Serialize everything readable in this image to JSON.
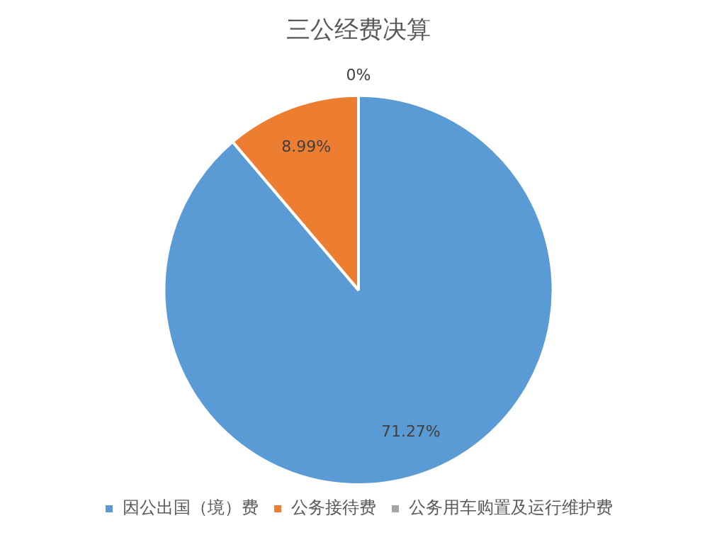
{
  "chart_data": {
    "type": "pie",
    "title": "三公经费决算",
    "categories": [
      "因公出国（境）费",
      "公务接待费",
      "公务用车购置及运行维护费"
    ],
    "values": [
      71.27,
      8.99,
      0
    ],
    "colors": [
      "#5b9bd5",
      "#ed7d31",
      "#a5a5a5"
    ],
    "value_labels": [
      "71.27%",
      "8.99%",
      "0%"
    ],
    "legend": "bottom"
  }
}
